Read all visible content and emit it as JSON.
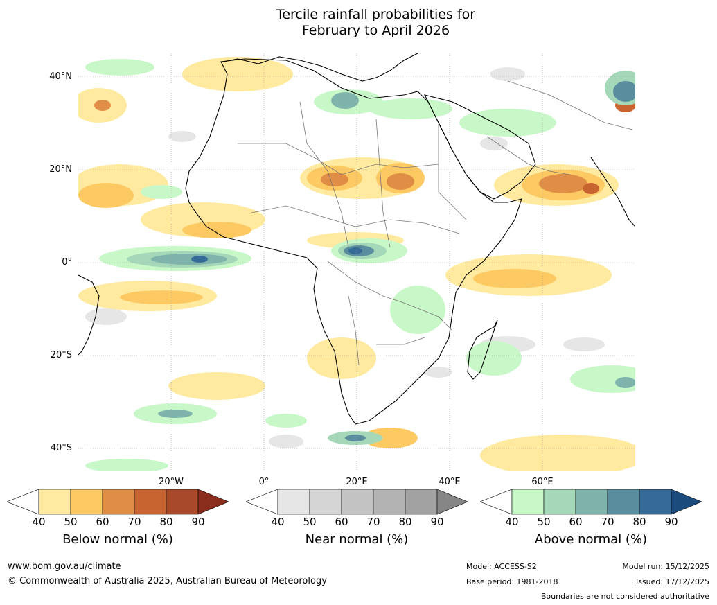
{
  "title_line1": "Tercile rainfall probabilities for",
  "title_line2": "February to April 2026",
  "lat_labels": [
    "40°N",
    "20°N",
    "0°",
    "20°S",
    "40°S"
  ],
  "lon_labels": [
    "20°W",
    "0°",
    "20°E",
    "40°E",
    "60°E"
  ],
  "colorbars": [
    {
      "id": "below",
      "title": "Below normal (%)",
      "ticks": [
        "40",
        "50",
        "60",
        "70",
        "80",
        "90"
      ],
      "colors": [
        "#ffffff",
        "#ffeaa0",
        "#fdc962",
        "#e08e45",
        "#c8642f",
        "#a84a2a",
        "#8a2d1c"
      ]
    },
    {
      "id": "near",
      "title": "Near normal (%)",
      "ticks": [
        "40",
        "50",
        "60",
        "70",
        "80",
        "90"
      ],
      "colors": [
        "#ffffff",
        "#e6e6e6",
        "#d5d5d5",
        "#c4c4c4",
        "#b3b3b3",
        "#a2a2a2",
        "#858585"
      ]
    },
    {
      "id": "above",
      "title": "Above normal (%)",
      "ticks": [
        "40",
        "50",
        "60",
        "70",
        "80",
        "90"
      ],
      "colors": [
        "#ffffff",
        "#c8f7c8",
        "#a5d8b8",
        "#7fb4ad",
        "#5a8e9e",
        "#356b96",
        "#1b4a7c"
      ]
    }
  ],
  "footer": {
    "url": "www.bom.gov.au/climate",
    "copyright": "© Commonwealth of Australia 2025, Australian Bureau of Meteorology",
    "model": "Model: ACCESS-S2",
    "base_period": "Base period: 1981-2018",
    "model_run": "Model run: 15/12/2025",
    "issued": "Issued: 17/12/2025",
    "disclaimer": "Boundaries are not considered authoritative"
  }
}
